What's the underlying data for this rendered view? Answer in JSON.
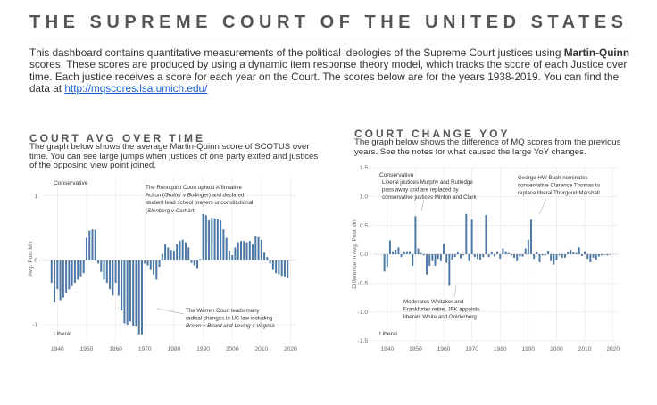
{
  "page": {
    "title": "THE SUPREME COURT OF THE UNITED STATES",
    "intro_1": "This dashboard contains quantitative measurements of the political ideologies of the Supreme Court justices using ",
    "intro_bold": "Martin-Quinn",
    "intro_2": " scores. These scores are produced by using a dynamic item response theory model, which tracks the score of each Justice over time. Each justice receives a score for each year on the Court. The scores below are for the years 1938-2019. You can find the data at ",
    "intro_link": "http://mqscores.lsa.umich.edu/"
  },
  "left_panel": {
    "title": "COURT AVG OVER TIME",
    "description": "The graph below shows the average Martin-Quinn score of SCOTUS over time. You can see large jumps when justices of one party exited and justices of the opposing view point joined."
  },
  "right_panel": {
    "title": "COURT CHANGE YOY",
    "description": "The graph below shows the difference of MQ scores from the previous years. See the notes for what caused the large YoY changes."
  },
  "colors": {
    "bar": "#4e79a7",
    "grid": "#e6e6e6",
    "zero": "#bbbbbb",
    "leader": "#999999"
  },
  "chart_data": [
    {
      "type": "bar",
      "ylabel": "Avg. Post Mn",
      "corner_top": "Conservative",
      "corner_bottom": "Liberal",
      "ylim": [
        -1.25,
        1.3
      ],
      "yticks": [
        1,
        0,
        -1
      ],
      "ytick_labels": [
        "1",
        "0",
        "-1"
      ],
      "xlim": [
        1935,
        2022
      ],
      "xticks": [
        1940,
        1950,
        1960,
        1970,
        1980,
        1990,
        2000,
        2010,
        2020
      ],
      "grid": true,
      "x": [
        1938,
        1939,
        1940,
        1941,
        1942,
        1943,
        1944,
        1945,
        1946,
        1947,
        1948,
        1949,
        1950,
        1951,
        1952,
        1953,
        1954,
        1955,
        1956,
        1957,
        1958,
        1959,
        1960,
        1961,
        1962,
        1963,
        1964,
        1965,
        1966,
        1967,
        1968,
        1969,
        1970,
        1971,
        1972,
        1973,
        1974,
        1975,
        1976,
        1977,
        1978,
        1979,
        1980,
        1981,
        1982,
        1983,
        1984,
        1985,
        1986,
        1987,
        1988,
        1989,
        1990,
        1991,
        1992,
        1993,
        1994,
        1995,
        1996,
        1997,
        1998,
        1999,
        2000,
        2001,
        2002,
        2003,
        2004,
        2005,
        2006,
        2007,
        2008,
        2009,
        2010,
        2011,
        2012,
        2013,
        2014,
        2015,
        2016,
        2017,
        2018,
        2019
      ],
      "values": [
        -0.35,
        -0.65,
        -0.45,
        -0.62,
        -0.58,
        -0.5,
        -0.45,
        -0.4,
        -0.35,
        -0.3,
        -0.25,
        -0.2,
        0.35,
        0.46,
        0.48,
        0.47,
        -0.05,
        -0.18,
        -0.3,
        -0.35,
        -0.45,
        -0.55,
        -0.35,
        -0.55,
        -0.78,
        -0.98,
        -1.0,
        -0.95,
        -1.02,
        -1.03,
        -1.15,
        -1.15,
        -0.05,
        -0.08,
        -0.15,
        -0.22,
        -0.3,
        -0.1,
        0.1,
        0.25,
        0.2,
        0.16,
        0.15,
        0.25,
        0.3,
        0.32,
        0.28,
        0.2,
        -0.04,
        -0.08,
        -0.12,
        0.02,
        0.72,
        0.7,
        0.62,
        0.66,
        0.65,
        0.64,
        0.62,
        0.48,
        0.35,
        0.15,
        0.08,
        0.2,
        0.28,
        0.3,
        0.3,
        0.28,
        0.3,
        0.25,
        0.38,
        0.36,
        0.32,
        0.12,
        0.05,
        -0.05,
        -0.15,
        -0.2,
        -0.22,
        -0.24,
        -0.25,
        -0.28
      ],
      "annotations": [
        {
          "lines": [
            "The Rehnquist Court upheld Affirmative",
            "Action (Grutter v Bollinger) and declared",
            "student lead school prayers unconstitutional",
            "(Stenberg v Carhart)"
          ]
        },
        {
          "lines": [
            "The Warren Court leads many",
            "radical changes in US law including",
            "Brown v Board and Loving v Virginia"
          ]
        }
      ]
    },
    {
      "type": "bar",
      "ylabel": "Difference in Avg. Post Mn",
      "corner_top": "Conservative",
      "corner_bottom": "Liberal",
      "ylim": [
        -1.5,
        1.5
      ],
      "yticks": [
        1.5,
        1.0,
        0.5,
        0.0,
        -0.5,
        -1.0,
        -1.5
      ],
      "ytick_labels": [
        "1.5",
        "1.0",
        "0.5",
        "0.0",
        "-0.5",
        "-1.0",
        "-1.5"
      ],
      "xlim": [
        1935,
        2022
      ],
      "xticks": [
        1940,
        1950,
        1960,
        1970,
        1980,
        1990,
        2000,
        2010,
        2020
      ],
      "grid": true,
      "x": [
        1939,
        1940,
        1941,
        1942,
        1943,
        1944,
        1945,
        1946,
        1947,
        1948,
        1949,
        1950,
        1951,
        1952,
        1953,
        1954,
        1955,
        1956,
        1957,
        1958,
        1959,
        1960,
        1961,
        1962,
        1963,
        1964,
        1965,
        1966,
        1967,
        1968,
        1969,
        1970,
        1971,
        1972,
        1973,
        1974,
        1975,
        1976,
        1977,
        1978,
        1979,
        1980,
        1981,
        1982,
        1983,
        1984,
        1985,
        1986,
        1987,
        1988,
        1989,
        1990,
        1991,
        1992,
        1993,
        1994,
        1995,
        1996,
        1997,
        1998,
        1999,
        2000,
        2001,
        2002,
        2003,
        2004,
        2005,
        2006,
        2007,
        2008,
        2009,
        2010,
        2011,
        2012,
        2013,
        2014,
        2015,
        2016,
        2017,
        2018,
        2019
      ],
      "values": [
        -0.3,
        -0.22,
        0.24,
        0.05,
        0.08,
        0.12,
        -0.05,
        0.05,
        0.05,
        0.05,
        -0.2,
        0.66,
        0.1,
        0.02,
        -0.02,
        -0.35,
        -0.2,
        -0.12,
        -0.2,
        -0.08,
        -0.12,
        0.18,
        -0.15,
        -0.55,
        -0.1,
        -0.05,
        0.05,
        -0.07,
        -0.02,
        0.7,
        -0.12,
        0.6,
        -0.05,
        -0.08,
        -0.1,
        -0.05,
        0.68,
        -0.05,
        0.04,
        -0.04,
        0.05,
        -0.08,
        0.1,
        0.05,
        0.02,
        -0.02,
        -0.06,
        -0.12,
        -0.04,
        -0.04,
        0.1,
        0.25,
        0.6,
        -0.08,
        0.04,
        -0.14,
        -0.02,
        -0.02,
        0.06,
        -0.12,
        -0.18,
        -0.1,
        -0.02,
        -0.06,
        -0.06,
        0.04,
        0.08,
        0.03,
        0.02,
        0.12,
        -0.03,
        0.05,
        -0.08,
        -0.14,
        -0.06,
        -0.1,
        -0.04,
        -0.02,
        -0.01,
        -0.02,
        -0.01
      ],
      "annotations": [
        {
          "lines": [
            "Liberal justices Murphy and Rutledge",
            "pass away and are replaced by",
            "conservative justices Minton and Clark"
          ]
        },
        {
          "lines": [
            "George HW Bush nominates",
            "conservative Clarence Thomas to",
            "replace liberal Thurgood Marshall"
          ]
        },
        {
          "lines": [
            "Moderates Whitaker and",
            "Frankfurter retire, JFK appoints",
            "liberals White and Golderberg"
          ]
        }
      ]
    }
  ]
}
